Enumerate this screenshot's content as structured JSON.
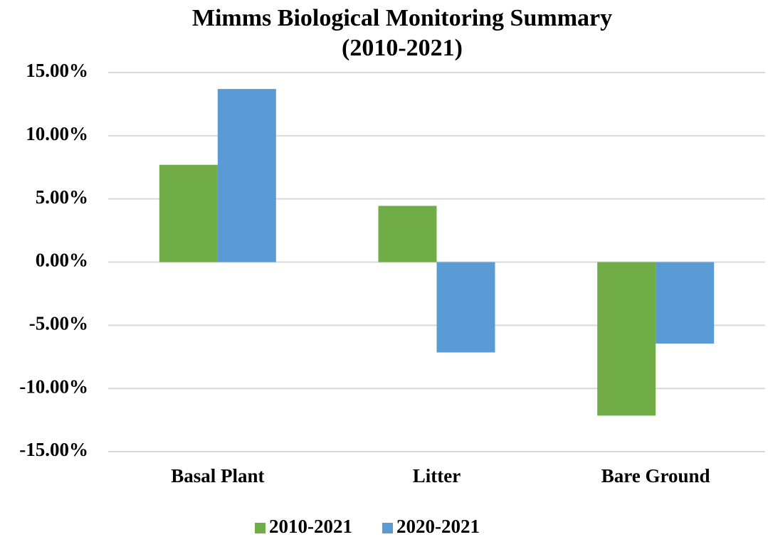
{
  "chart_data": {
    "type": "bar",
    "title": [
      "Mimms Biological Monitoring Summary",
      "(2010-2021)"
    ],
    "categories": [
      "Basal Plant",
      "Litter",
      "Bare Ground"
    ],
    "series": [
      {
        "name": "2010-2021",
        "color": "#70ad47",
        "values": [
          7.7,
          4.45,
          -12.15
        ]
      },
      {
        "name": "2020-2021",
        "color": "#5b9bd5",
        "values": [
          13.7,
          -7.15,
          -6.45
        ]
      }
    ],
    "ylim": [
      -15,
      15
    ],
    "yticks": [
      {
        "value": -15,
        "label": "-15.00%"
      },
      {
        "value": -10,
        "label": "-10.00%"
      },
      {
        "value": -5,
        "label": "-5.00%"
      },
      {
        "value": 0,
        "label": "0.00%"
      },
      {
        "value": 5,
        "label": "5.00%"
      },
      {
        "value": 10,
        "label": "10.00%"
      },
      {
        "value": 15,
        "label": "15.00%"
      }
    ],
    "grid": true,
    "legend": "bottom"
  }
}
